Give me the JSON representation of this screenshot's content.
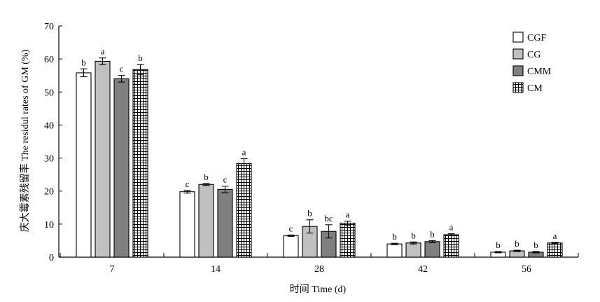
{
  "chart_data": {
    "type": "bar",
    "xlabel": "时间 Time (d)",
    "ylabel": "庆大霉素残留率 The residul rates of GM (%)",
    "ylim": [
      0,
      70
    ],
    "yticks": [
      0,
      10,
      20,
      30,
      40,
      50,
      60,
      70
    ],
    "categories": [
      "7",
      "14",
      "28",
      "42",
      "56"
    ],
    "legend_position": "top-right",
    "grid": false,
    "series": [
      {
        "name": "CGF",
        "fill": "#ffffff",
        "pattern": "none",
        "values": [
          55.8,
          19.8,
          6.5,
          4.0,
          1.5
        ],
        "errors": [
          1.2,
          0.4,
          0.2,
          0.2,
          0.2
        ],
        "labels": [
          "b",
          "c",
          "c",
          "b",
          "b"
        ]
      },
      {
        "name": "CG",
        "fill": "#c0c0c0",
        "pattern": "none",
        "values": [
          59.3,
          22.0,
          9.3,
          4.3,
          1.9
        ],
        "errors": [
          1.0,
          0.3,
          2.0,
          0.3,
          0.2
        ],
        "labels": [
          "a",
          "b",
          "b",
          "b",
          "b"
        ]
      },
      {
        "name": "CMM",
        "fill": "#808080",
        "pattern": "none",
        "values": [
          54.0,
          20.5,
          7.8,
          4.7,
          1.5
        ],
        "errors": [
          1.0,
          1.0,
          2.0,
          0.3,
          0.2
        ],
        "labels": [
          "c",
          "c",
          "bc",
          "b",
          "b"
        ]
      },
      {
        "name": "CM",
        "fill": "#ffffff",
        "pattern": "grid",
        "values": [
          56.8,
          28.3,
          10.3,
          6.8,
          4.3
        ],
        "errors": [
          1.5,
          1.5,
          0.6,
          0.3,
          0.2
        ],
        "labels": [
          "b",
          "a",
          "a",
          "a",
          "a"
        ]
      }
    ]
  }
}
